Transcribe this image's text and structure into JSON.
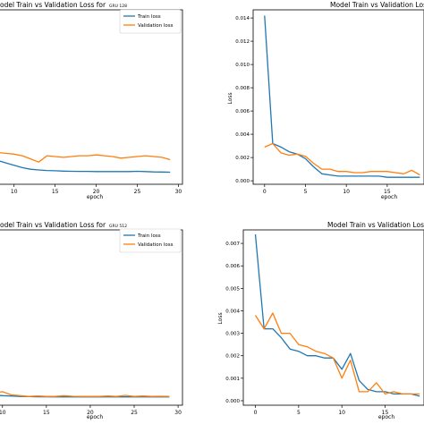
{
  "colors": {
    "train": "#1f77b4",
    "validation": "#ff7f0e",
    "axis": "#000000",
    "background": "#ffffff"
  },
  "chart_data": [
    {
      "type": "line",
      "title": "odel Train vs Validation Loss for",
      "subtitle": "GRU 128",
      "xlabel": "epoch",
      "ylabel": "",
      "xlim": [
        7.2,
        30.5
      ],
      "ylim": [
        -0.5,
        10.5
      ],
      "xticks": [
        10,
        15,
        20,
        25,
        30
      ],
      "yticks": [],
      "grid": false,
      "legend": "top-right",
      "series": [
        {
          "name": "Train loss",
          "x": [
            7,
            8,
            9,
            10,
            11,
            12,
            13,
            14,
            15,
            16,
            17,
            18,
            19,
            20,
            21,
            22,
            23,
            24,
            25,
            26,
            27,
            28,
            29
          ],
          "y": [
            1.25,
            1.0,
            0.85,
            0.7,
            0.55,
            0.45,
            0.4,
            0.37,
            0.35,
            0.33,
            0.32,
            0.31,
            0.31,
            0.3,
            0.3,
            0.3,
            0.3,
            0.3,
            0.32,
            0.3,
            0.28,
            0.27,
            0.26
          ]
        },
        {
          "name": "Validation loss",
          "x": [
            7,
            8,
            9,
            10,
            11,
            12,
            13,
            14,
            15,
            16,
            17,
            18,
            19,
            20,
            21,
            22,
            23,
            24,
            25,
            26,
            27,
            28,
            29
          ],
          "y": [
            1.6,
            1.5,
            1.45,
            1.4,
            1.3,
            1.1,
            0.9,
            1.3,
            1.25,
            1.2,
            1.25,
            1.3,
            1.3,
            1.35,
            1.3,
            1.25,
            1.15,
            1.2,
            1.25,
            1.3,
            1.25,
            1.2,
            1.05
          ]
        }
      ]
    },
    {
      "type": "line",
      "title": "Model Train vs Validation Loss fo",
      "xlabel": "epoch",
      "ylabel": "Loss",
      "xlim": [
        -1.4,
        19.5
      ],
      "ylim": [
        -0.0003,
        0.0147
      ],
      "xticks": [
        0,
        5,
        10,
        15
      ],
      "yticks": [
        0.0,
        0.002,
        0.004,
        0.006,
        0.008,
        0.01,
        0.012,
        0.014
      ],
      "ytick_labels": [
        "0.000",
        "0.002",
        "0.004",
        "0.006",
        "0.008",
        "0.010",
        "0.012",
        "0.014"
      ],
      "grid": false,
      "series": [
        {
          "name": "Train loss",
          "x": [
            0,
            1,
            2,
            3,
            4,
            5,
            6,
            7,
            8,
            9,
            10,
            11,
            12,
            13,
            14,
            15,
            16,
            17,
            18,
            19
          ],
          "y": [
            0.0142,
            0.0032,
            0.0029,
            0.0025,
            0.0023,
            0.0019,
            0.0012,
            0.0006,
            0.0005,
            0.0004,
            0.0004,
            0.0004,
            0.0004,
            0.0004,
            0.0004,
            0.0003,
            0.0003,
            0.0003,
            0.0003,
            0.0003
          ]
        },
        {
          "name": "Validation loss",
          "x": [
            0,
            1,
            2,
            3,
            4,
            5,
            6,
            7,
            8,
            9,
            10,
            11,
            12,
            13,
            14,
            15,
            16,
            17,
            18,
            19
          ],
          "y": [
            0.0029,
            0.0032,
            0.0024,
            0.0022,
            0.0023,
            0.0021,
            0.0015,
            0.001,
            0.001,
            0.0008,
            0.0008,
            0.0007,
            0.0007,
            0.0008,
            0.0008,
            0.0008,
            0.0007,
            0.0006,
            0.0009,
            0.0005
          ]
        }
      ]
    },
    {
      "type": "line",
      "title": "odel Train vs Validation Loss for",
      "subtitle": "GRU 512",
      "xlabel": "epoch",
      "ylabel": "",
      "xlim": [
        8.7,
        30.5
      ],
      "ylim": [
        -0.5,
        10.5
      ],
      "xticks": [
        10,
        15,
        20,
        25,
        30
      ],
      "yticks": [],
      "grid": false,
      "legend": "top-right",
      "series": [
        {
          "name": "Train loss",
          "x": [
            8,
            9,
            10,
            11,
            12,
            13,
            14,
            15,
            16,
            17,
            18,
            19,
            20,
            21,
            22,
            23,
            24,
            25,
            26,
            27,
            28,
            29
          ],
          "y": [
            0.2,
            0.15,
            0.1,
            0.08,
            0.05,
            0.04,
            0.03,
            0.03,
            0.02,
            0.02,
            0.02,
            0.02,
            0.02,
            0.02,
            0.02,
            0.02,
            0.02,
            0.02,
            0.02,
            0.02,
            0.02,
            0.02
          ]
        },
        {
          "name": "Validation loss",
          "x": [
            8,
            9,
            10,
            11,
            12,
            13,
            14,
            15,
            16,
            17,
            18,
            19,
            20,
            21,
            22,
            23,
            24,
            25,
            26,
            27,
            28,
            29
          ],
          "y": [
            0.3,
            0.25,
            0.35,
            0.15,
            0.1,
            0.05,
            0.08,
            0.05,
            0.05,
            0.1,
            0.06,
            0.05,
            0.05,
            0.05,
            0.08,
            0.05,
            0.12,
            0.05,
            0.08,
            0.05,
            0.06,
            0.05
          ]
        }
      ]
    },
    {
      "type": "line",
      "title": "Model Train vs Validation Loss f",
      "xlabel": "epoch",
      "ylabel": "Loss",
      "xlim": [
        -1.4,
        19.5
      ],
      "ylim": [
        -0.0002,
        0.0076
      ],
      "xticks": [
        0,
        5,
        10,
        15
      ],
      "yticks": [
        0.0,
        0.001,
        0.002,
        0.003,
        0.004,
        0.005,
        0.006,
        0.007
      ],
      "ytick_labels": [
        "0.000",
        "0.001",
        "0.002",
        "0.003",
        "0.004",
        "0.005",
        "0.006",
        "0.007"
      ],
      "grid": false,
      "series": [
        {
          "name": "Train loss",
          "x": [
            0,
            1,
            2,
            3,
            4,
            5,
            6,
            7,
            8,
            9,
            10,
            11,
            12,
            13,
            14,
            15,
            16,
            17,
            18,
            19
          ],
          "y": [
            0.0074,
            0.0032,
            0.0032,
            0.0028,
            0.0023,
            0.0022,
            0.002,
            0.002,
            0.0019,
            0.0019,
            0.0014,
            0.0021,
            0.0009,
            0.0005,
            0.0004,
            0.0004,
            0.0003,
            0.0003,
            0.0003,
            0.0002
          ]
        },
        {
          "name": "Validation loss",
          "x": [
            0,
            1,
            2,
            3,
            4,
            5,
            6,
            7,
            8,
            9,
            10,
            11,
            12,
            13,
            14,
            15,
            16,
            17,
            18,
            19
          ],
          "y": [
            0.0038,
            0.0032,
            0.0039,
            0.003,
            0.003,
            0.0025,
            0.0024,
            0.0022,
            0.0021,
            0.0019,
            0.001,
            0.0018,
            0.0004,
            0.0004,
            0.0008,
            0.0003,
            0.0004,
            0.0003,
            0.0003,
            0.0003
          ]
        }
      ]
    }
  ]
}
